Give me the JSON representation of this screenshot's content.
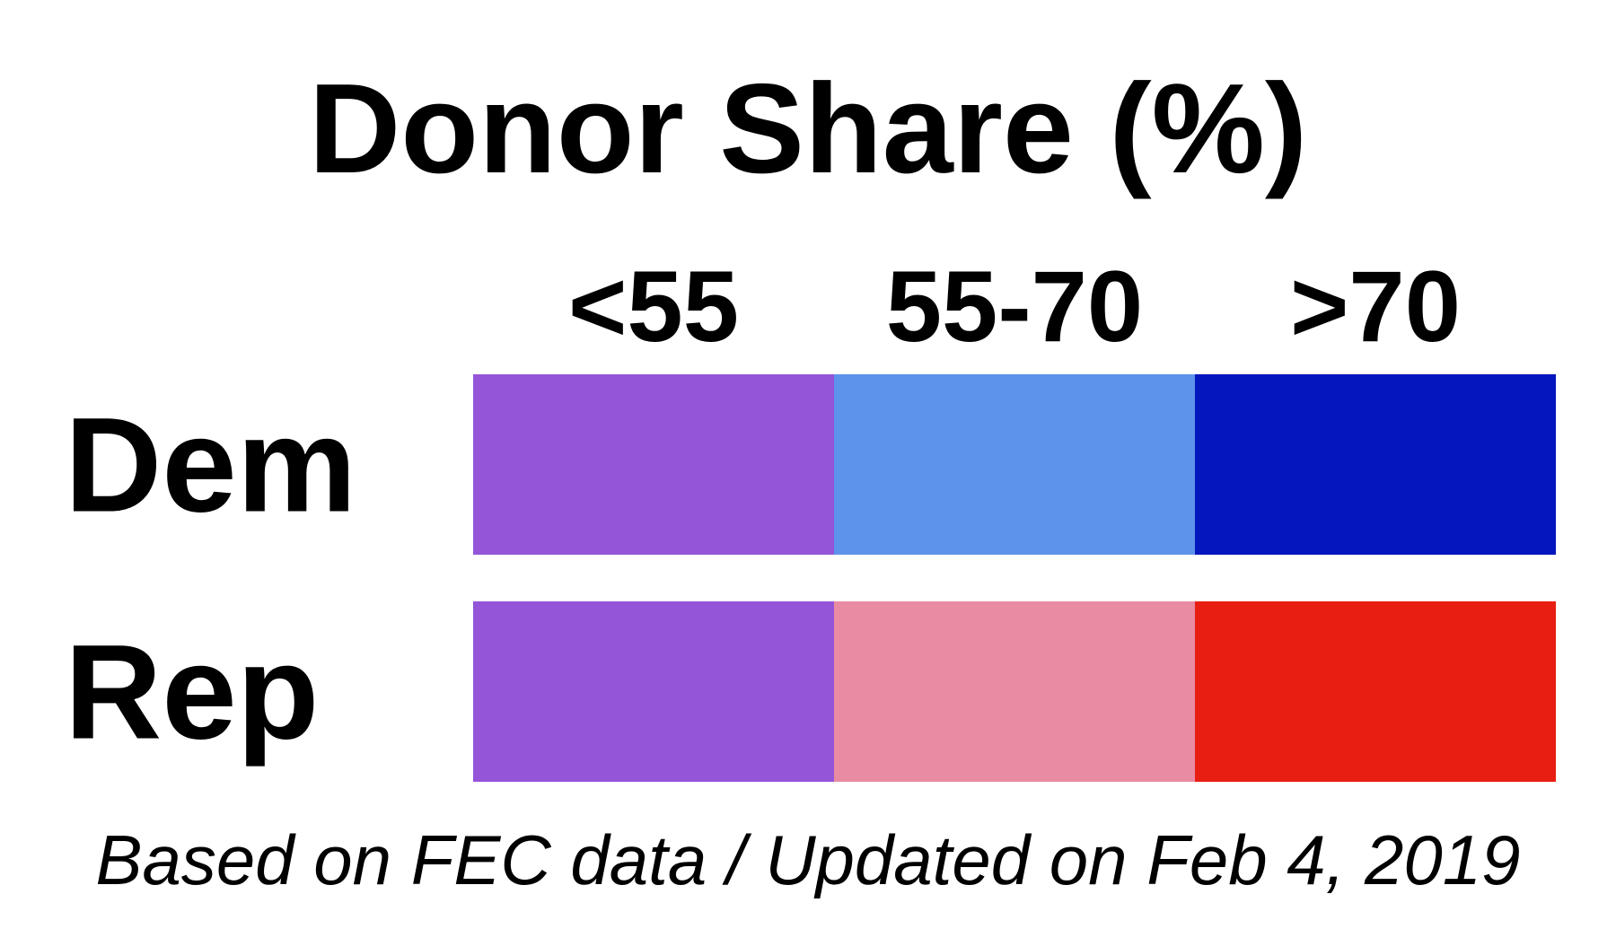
{
  "chart_data": {
    "type": "table",
    "title": "Donor Share (%)",
    "columns": [
      "<55",
      "55-70",
      ">70"
    ],
    "rows": [
      {
        "label": "Dem",
        "colors": [
          "#9455d8",
          "#5e93eb",
          "#0416be"
        ]
      },
      {
        "label": "Rep",
        "colors": [
          "#9455d8",
          "#e98ba3",
          "#e91e12"
        ]
      }
    ],
    "footnote": "Based on FEC data / Updated on Feb 4, 2019"
  }
}
